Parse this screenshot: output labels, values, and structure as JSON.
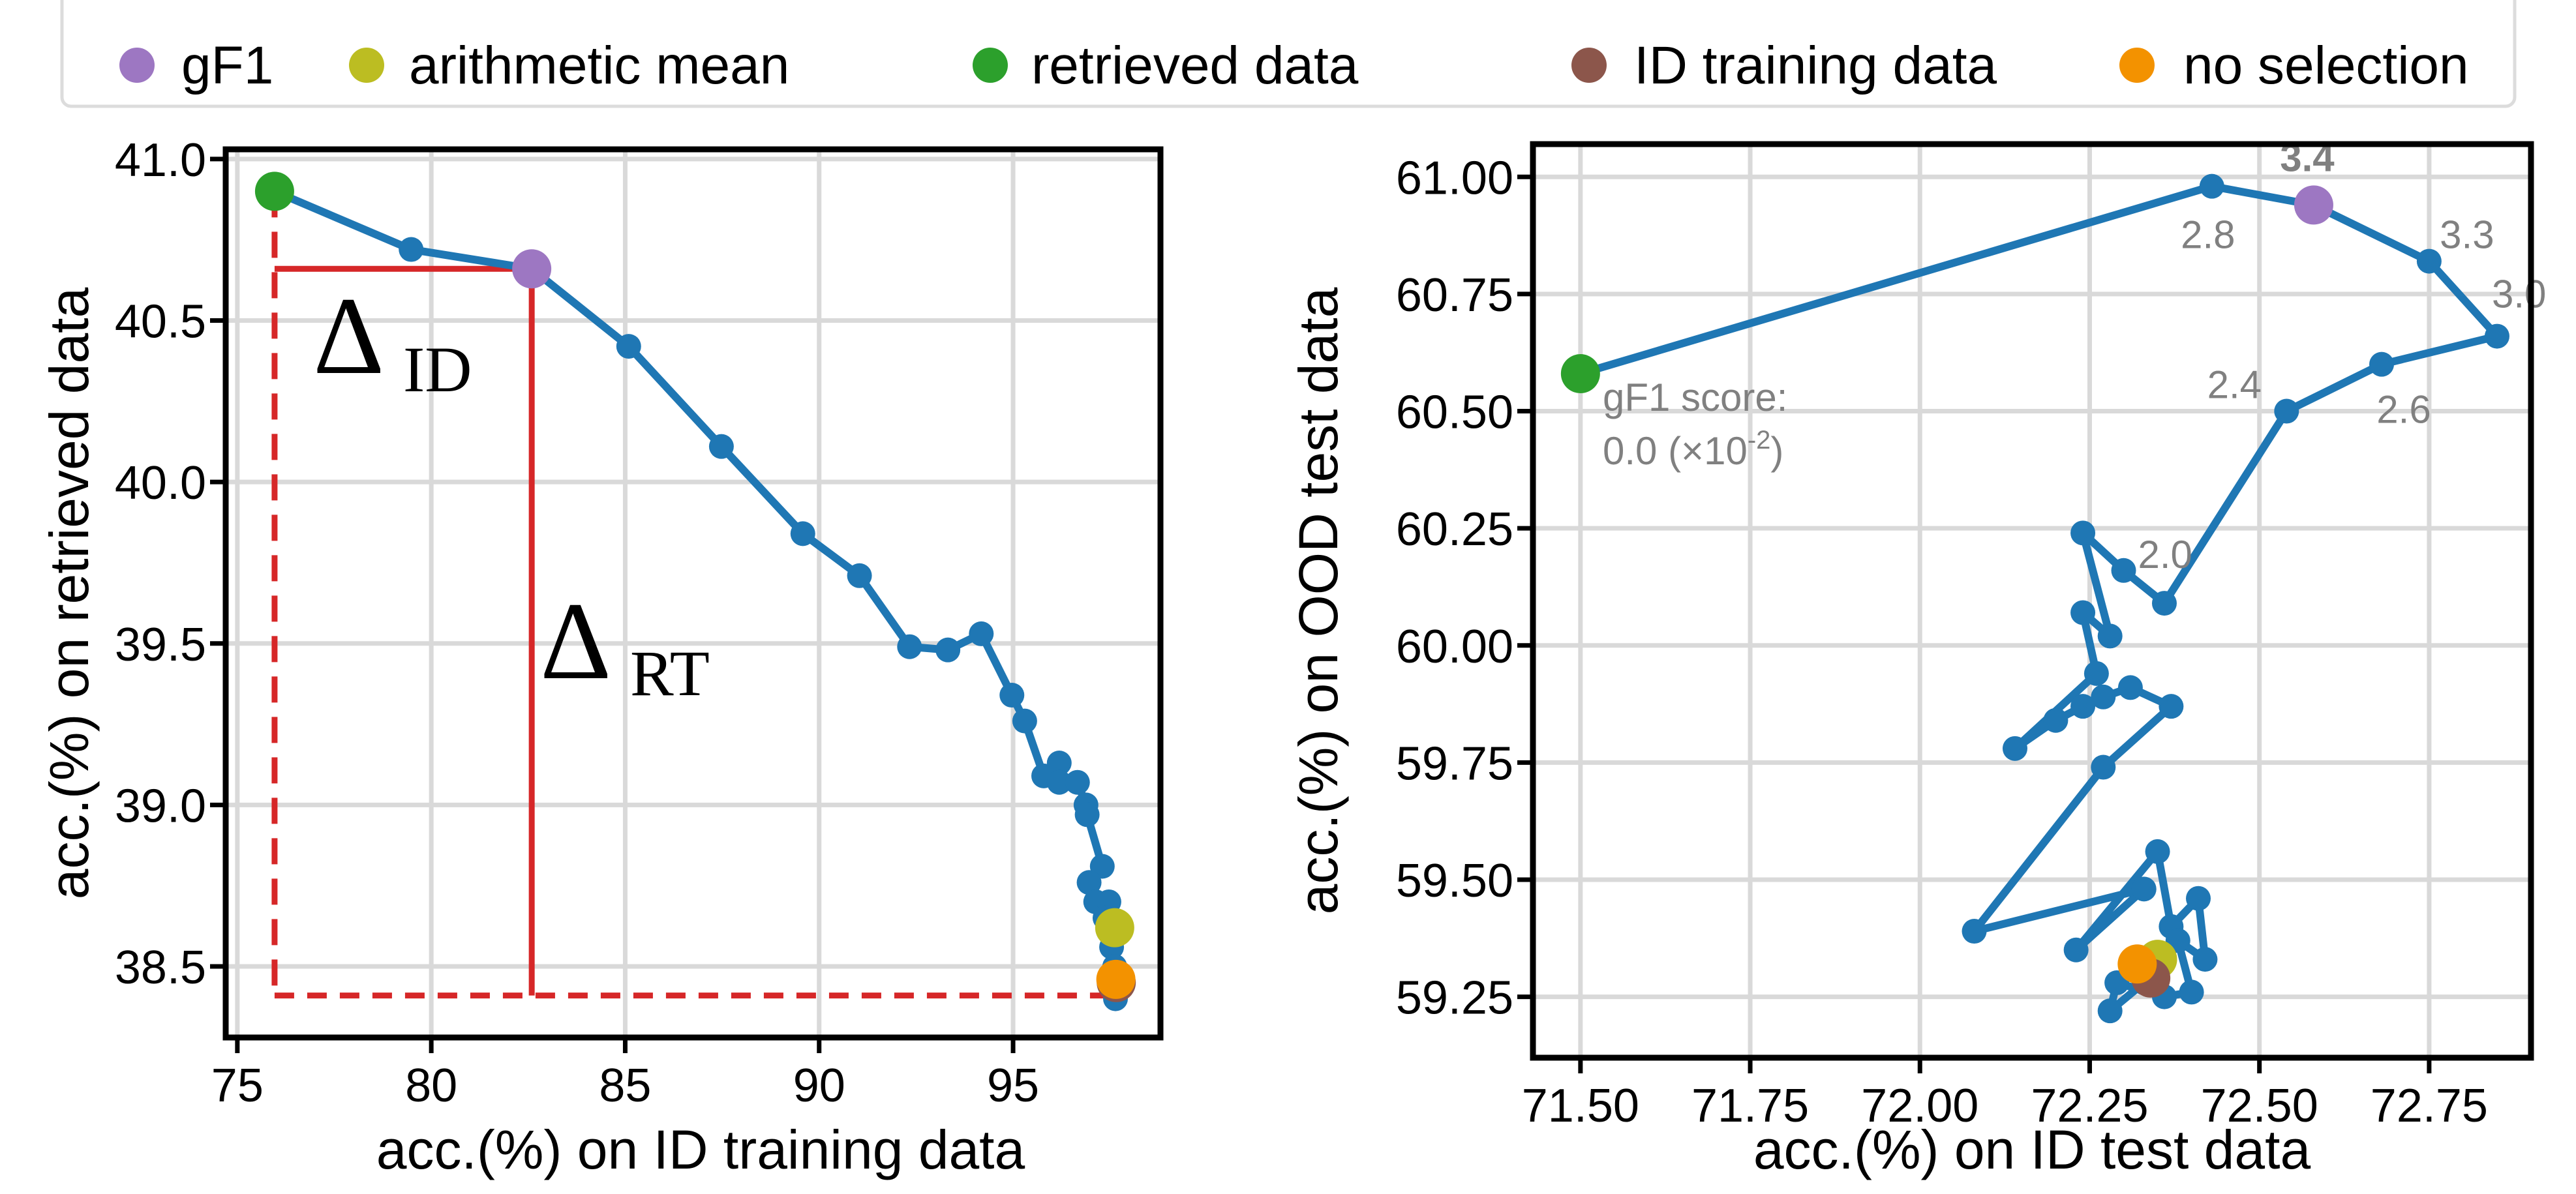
{
  "legend": {
    "placement": "top",
    "items": [
      {
        "label": "gF1",
        "color": "#9d77c2"
      },
      {
        "label": "arithmetic mean",
        "color": "#bcbd22"
      },
      {
        "label": "retrieved data",
        "color": "#2ca02c"
      },
      {
        "label": "ID training data",
        "color": "#8c564b"
      },
      {
        "label": "no selection",
        "color": "#f39200"
      }
    ]
  },
  "colors": {
    "series": "#1f77b4",
    "delta_lines": "#d62728",
    "grid": "#d9d9d9",
    "annotation": "#808080"
  },
  "chart_data": [
    {
      "type": "line",
      "xlabel": "acc.(%) on ID training data",
      "ylabel": "acc.(%) on retrieved data",
      "xlim": [
        74.7,
        98.8
      ],
      "ylim": [
        38.28,
        41.03
      ],
      "xticks": [
        "75",
        "80",
        "85",
        "90",
        "95"
      ],
      "yticks": [
        "38.5",
        "39.0",
        "39.5",
        "40.0",
        "40.5",
        "41.0"
      ],
      "grid": true,
      "series": [
        {
          "x": [
            75.96,
            79.48,
            82.59,
            85.09,
            87.48,
            89.58,
            91.04,
            92.33,
            93.32,
            94.18,
            94.97,
            95.3,
            95.79,
            96.19,
            96.19,
            96.66,
            96.88,
            96.91,
            97.3,
            96.96,
            97.13,
            97.47,
            97.37,
            97.54,
            97.62,
            97.64
          ],
          "y": [
            40.9,
            40.72,
            40.66,
            40.42,
            40.11,
            39.84,
            39.71,
            39.49,
            39.48,
            39.53,
            39.34,
            39.26,
            39.09,
            39.13,
            39.07,
            39.07,
            39.0,
            38.97,
            38.81,
            38.76,
            38.7,
            38.7,
            38.65,
            38.56,
            38.5,
            38.4
          ]
        }
      ],
      "highlights": [
        {
          "legend": "retrieved data",
          "x": 75.96,
          "y": 40.9
        },
        {
          "legend": "gF1",
          "x": 82.59,
          "y": 40.66
        },
        {
          "legend": "arithmetic mean",
          "x": 97.62,
          "y": 38.62
        },
        {
          "legend": "ID training data",
          "x": 97.66,
          "y": 38.45
        },
        {
          "legend": "no selection",
          "x": 97.65,
          "y": 38.46
        }
      ],
      "annotations": {
        "delta_id": {
          "symbol": "Δ",
          "sub": "ID"
        },
        "delta_rt": {
          "symbol": "Δ",
          "sub": "RT"
        },
        "baseline_y": 38.41
      }
    },
    {
      "type": "line",
      "xlabel": "acc.(%) on ID test data",
      "ylabel": "acc.(%) on OOD test data",
      "xlim": [
        71.43,
        72.9
      ],
      "ylim": [
        59.12,
        61.07
      ],
      "xticks": [
        "71.50",
        "71.75",
        "72.00",
        "72.25",
        "72.50",
        "72.75"
      ],
      "yticks": [
        "59.25",
        "59.50",
        "59.75",
        "60.00",
        "60.25",
        "60.50",
        "60.75",
        "61.00"
      ],
      "grid": true,
      "series": [
        {
          "x": [
            71.5,
            72.43,
            72.58,
            72.75,
            72.85,
            72.68,
            72.54,
            72.36,
            72.3,
            72.24,
            72.28,
            72.24,
            72.26,
            72.14,
            72.2,
            72.24,
            72.27,
            72.31,
            72.37,
            72.27,
            72.08,
            72.33,
            72.23,
            72.35,
            72.37,
            72.41,
            72.42,
            72.38,
            72.4,
            72.36,
            72.29,
            72.28,
            72.33
          ],
          "y": [
            60.58,
            60.98,
            60.94,
            60.82,
            60.66,
            60.6,
            60.5,
            60.09,
            60.16,
            60.24,
            60.02,
            60.07,
            59.94,
            59.78,
            59.84,
            59.87,
            59.89,
            59.91,
            59.87,
            59.74,
            59.39,
            59.48,
            59.35,
            59.56,
            59.4,
            59.46,
            59.33,
            59.37,
            59.26,
            59.25,
            59.28,
            59.22,
            59.28
          ]
        }
      ],
      "highlights": [
        {
          "legend": "retrieved data",
          "x": 71.5,
          "y": 60.58
        },
        {
          "legend": "gF1",
          "x": 72.58,
          "y": 60.94
        },
        {
          "legend": "arithmetic mean",
          "x": 72.35,
          "y": 59.33
        },
        {
          "legend": "ID training data",
          "x": 72.34,
          "y": 59.29
        },
        {
          "legend": "no selection",
          "x": 72.32,
          "y": 59.32
        }
      ],
      "point_labels": [
        {
          "text": "3.4",
          "x": 72.58,
          "y": 60.94,
          "bold": true
        },
        {
          "text": "2.8",
          "x": 72.43,
          "y": 60.98
        },
        {
          "text": "3.3",
          "x": 72.75,
          "y": 60.82
        },
        {
          "text": "3.0",
          "x": 72.85,
          "y": 60.66
        },
        {
          "text": "2.4",
          "x": 72.54,
          "y": 60.5
        },
        {
          "text": "2.6",
          "x": 72.68,
          "y": 60.6
        },
        {
          "text": "2.0",
          "x": 72.3,
          "y": 60.16
        }
      ],
      "score_note": {
        "line1": "gF1 score:",
        "line2": "0.0 (×10",
        "exp": "-2",
        "close": ")"
      }
    }
  ]
}
